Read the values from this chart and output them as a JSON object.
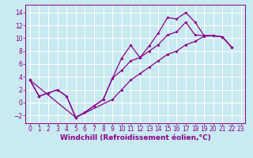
{
  "background_color": "#c8eaf0",
  "grid_color": "#ffffff",
  "line_color": "#8b008b",
  "xlabel": "Windchill (Refroidissement éolien,°C)",
  "xlabel_fontsize": 6.5,
  "tick_fontsize": 5.5,
  "xlim": [
    -0.5,
    23.5
  ],
  "ylim": [
    -3.2,
    15.2
  ],
  "yticks": [
    -2,
    0,
    2,
    4,
    6,
    8,
    10,
    12,
    14
  ],
  "xticks": [
    0,
    1,
    2,
    3,
    4,
    5,
    6,
    7,
    8,
    9,
    10,
    11,
    12,
    13,
    14,
    15,
    16,
    17,
    18,
    19,
    20,
    21,
    22,
    23
  ],
  "series1_x": [
    0,
    1,
    2,
    3,
    4,
    5,
    6,
    7,
    8,
    9,
    10,
    11,
    12,
    13,
    14,
    15,
    16,
    17,
    18,
    19,
    20,
    21,
    22
  ],
  "series1_y": [
    3.5,
    1.0,
    1.5,
    2.0,
    1.0,
    -2.3,
    -1.5,
    -0.5,
    0.5,
    3.8,
    6.9,
    8.9,
    7.0,
    8.8,
    10.8,
    13.2,
    13.0,
    14.0,
    12.5,
    10.4,
    10.4,
    10.2,
    8.6
  ],
  "series2_x": [
    0,
    1,
    2,
    3,
    4,
    5,
    6,
    7,
    8,
    9,
    10,
    11,
    12,
    13,
    14,
    15,
    16,
    17,
    18,
    19,
    20,
    21,
    22
  ],
  "series2_y": [
    3.5,
    1.0,
    1.5,
    2.0,
    1.0,
    -2.3,
    -1.5,
    -0.5,
    0.5,
    3.8,
    5.0,
    6.5,
    7.0,
    8.0,
    9.0,
    10.5,
    11.0,
    12.5,
    10.5,
    10.4,
    10.4,
    10.2,
    8.6
  ],
  "series3_x": [
    0,
    5,
    9,
    10,
    11,
    12,
    13,
    14,
    15,
    16,
    17,
    18,
    19,
    20,
    21,
    22
  ],
  "series3_y": [
    3.5,
    -2.3,
    0.5,
    2.0,
    3.5,
    4.5,
    5.5,
    6.5,
    7.5,
    8.0,
    9.0,
    9.5,
    10.3,
    10.4,
    10.2,
    8.6
  ]
}
